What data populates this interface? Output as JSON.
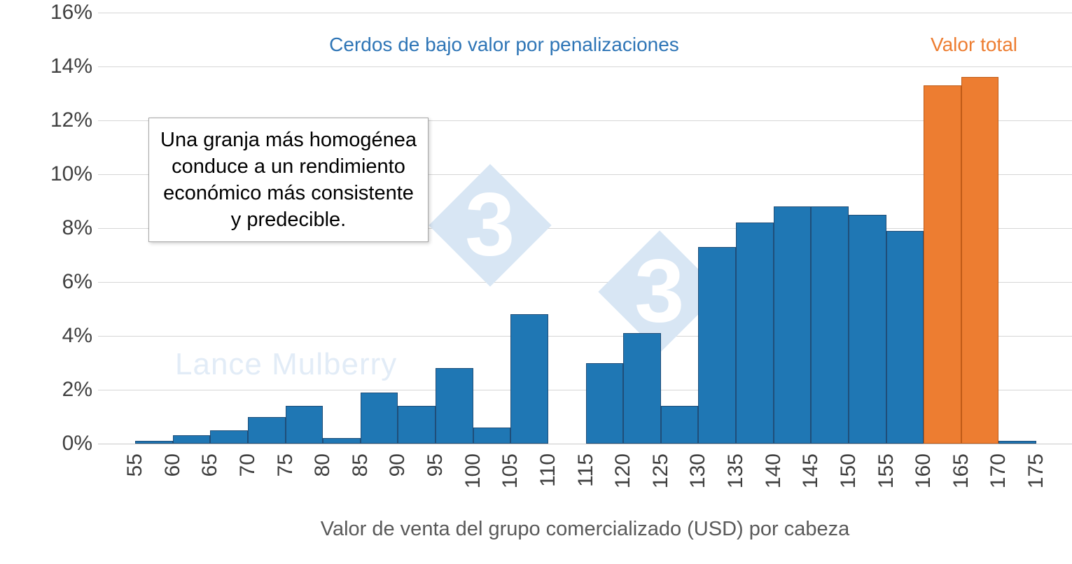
{
  "chart_data": {
    "type": "bar",
    "title": "Cerdos de bajo valor por penalizaciones",
    "legend_right": "Valor total",
    "xlabel": "Valor de venta del grupo comercializado (USD) por cabeza",
    "ylabel": "",
    "ylim": [
      0,
      16
    ],
    "ytick_step": 2,
    "ytick_suffix": "%",
    "grid": "on",
    "x_ticks": [
      55,
      60,
      65,
      70,
      75,
      80,
      85,
      90,
      95,
      100,
      105,
      110,
      115,
      120,
      125,
      130,
      135,
      140,
      145,
      150,
      155,
      160,
      165,
      170,
      175
    ],
    "series": [
      {
        "name": "Cerdos de bajo valor por penalizaciones",
        "color": "#1F77B4",
        "border": "#1F4E79"
      },
      {
        "name": "Valor total",
        "color": "#ED7D31",
        "border": "#BF5B17"
      }
    ],
    "bins": [
      {
        "from": 55,
        "to": 60,
        "value": 0.1,
        "series": 0
      },
      {
        "from": 60,
        "to": 65,
        "value": 0.3,
        "series": 0
      },
      {
        "from": 65,
        "to": 70,
        "value": 0.5,
        "series": 0
      },
      {
        "from": 70,
        "to": 75,
        "value": 1.0,
        "series": 0
      },
      {
        "from": 75,
        "to": 80,
        "value": 1.4,
        "series": 0
      },
      {
        "from": 80,
        "to": 85,
        "value": 0.2,
        "series": 0
      },
      {
        "from": 85,
        "to": 90,
        "value": 1.9,
        "series": 0
      },
      {
        "from": 90,
        "to": 95,
        "value": 1.4,
        "series": 0
      },
      {
        "from": 95,
        "to": 100,
        "value": 2.8,
        "series": 0
      },
      {
        "from": 100,
        "to": 105,
        "value": 0.6,
        "series": 0
      },
      {
        "from": 105,
        "to": 110,
        "value": 4.8,
        "series": 0
      },
      {
        "from": 110,
        "to": 115,
        "value": 0,
        "series": 0
      },
      {
        "from": 115,
        "to": 120,
        "value": 3.0,
        "series": 0
      },
      {
        "from": 120,
        "to": 125,
        "value": 4.1,
        "series": 0
      },
      {
        "from": 125,
        "to": 130,
        "value": 1.4,
        "series": 0
      },
      {
        "from": 130,
        "to": 135,
        "value": 7.3,
        "series": 0
      },
      {
        "from": 135,
        "to": 140,
        "value": 8.2,
        "series": 0
      },
      {
        "from": 140,
        "to": 145,
        "value": 8.8,
        "series": 0
      },
      {
        "from": 145,
        "to": 150,
        "value": 8.8,
        "series": 0
      },
      {
        "from": 150,
        "to": 155,
        "value": 8.5,
        "series": 0
      },
      {
        "from": 155,
        "to": 160,
        "value": 7.9,
        "series": 0
      },
      {
        "from": 160,
        "to": 165,
        "value": 13.3,
        "series": 1
      },
      {
        "from": 165,
        "to": 170,
        "value": 13.6,
        "series": 1
      },
      {
        "from": 170,
        "to": 175,
        "value": 0.1,
        "series": 0
      }
    ],
    "annotation_lines": [
      "Una granja más homogénea",
      "conduce a un rendimiento",
      "económico más consistente",
      "y predecible."
    ],
    "legend_position": "top",
    "colors": {
      "bar_blue": "#1F77B4",
      "bar_blue_border": "#1F4E79",
      "bar_orange": "#ED7D31",
      "bar_orange_border": "#BF5B17",
      "title_blue": "#2E75B6",
      "legend_orange": "#ED7D31",
      "gridline": "#D6D6D6",
      "axis_text": "#404040",
      "watermark_blue": "#D8E6F4"
    }
  },
  "watermark": {
    "text": "Lance Mulberry",
    "logo_digit": "3"
  }
}
